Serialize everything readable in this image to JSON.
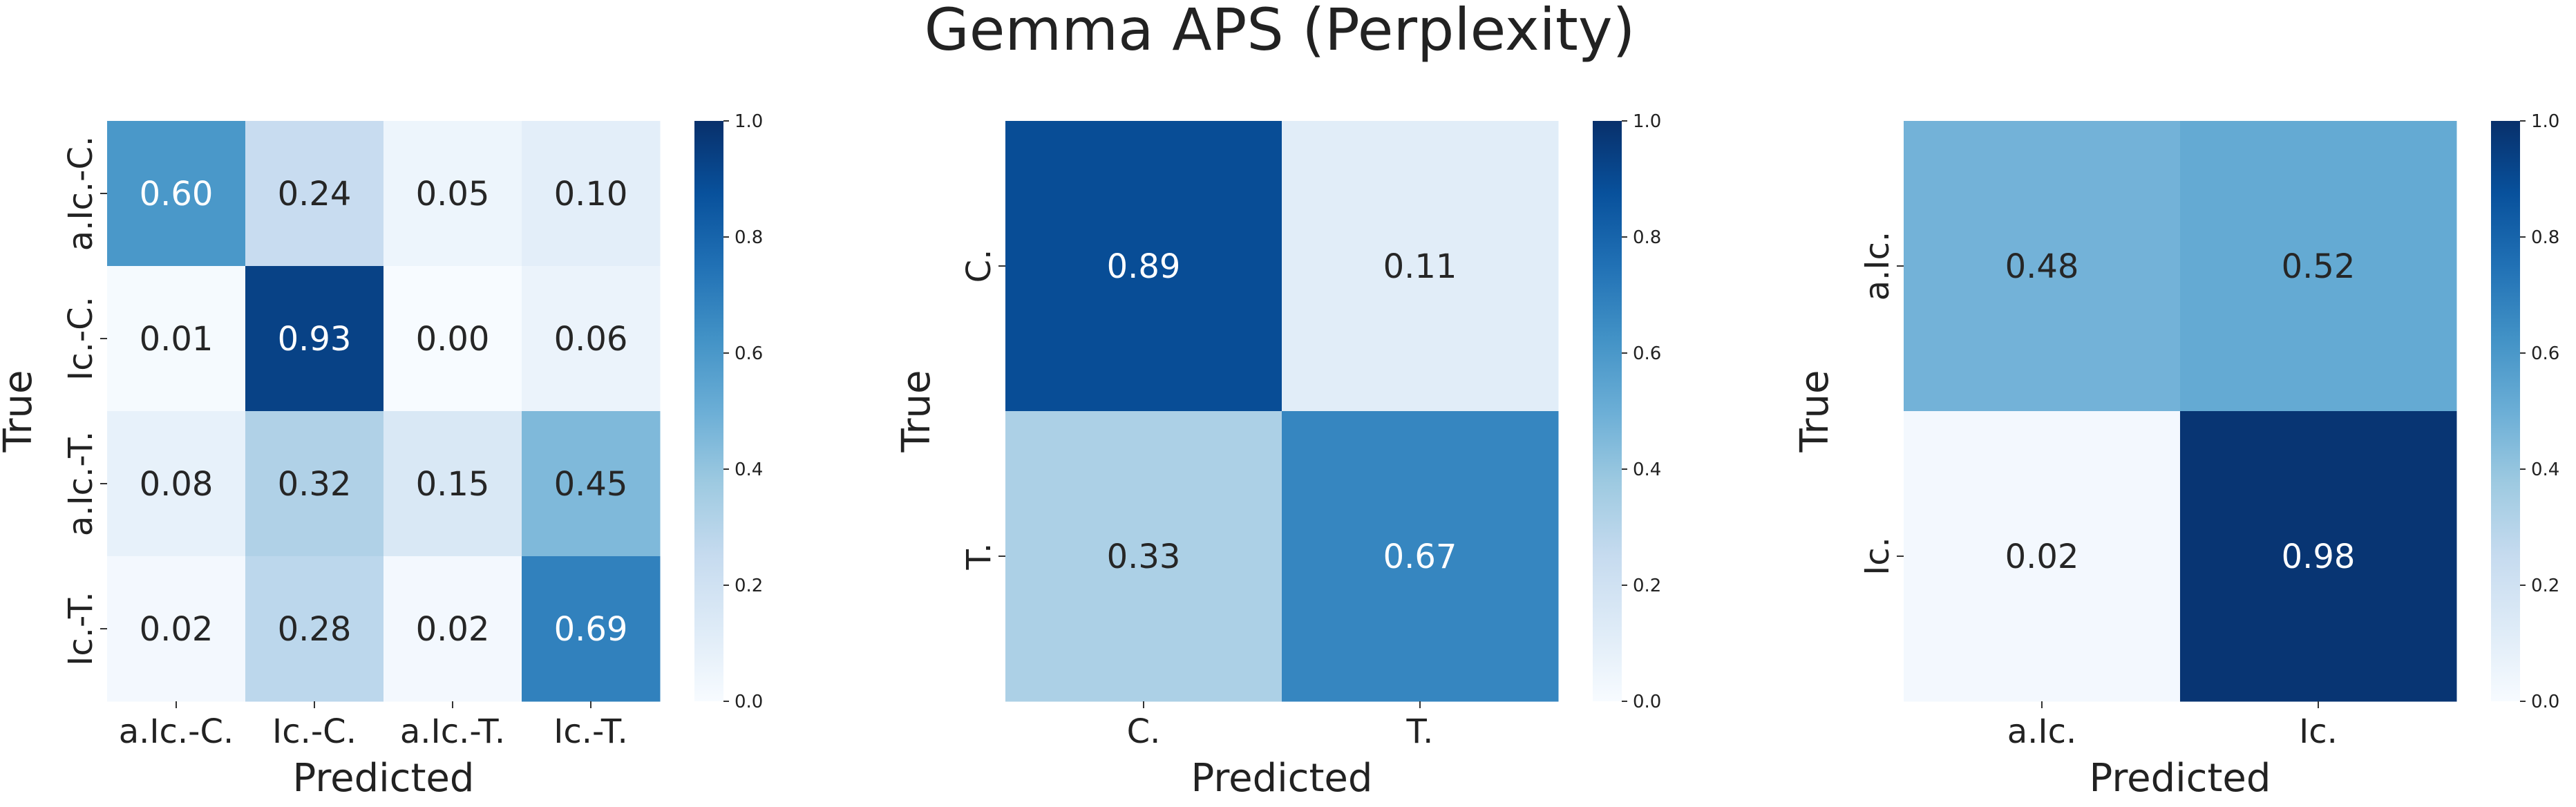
{
  "figure": {
    "title": "Gemma APS (Perplexity)"
  },
  "colorbar_ticks": [
    "0.0",
    "0.2",
    "0.4",
    "0.6",
    "0.8",
    "1.0"
  ],
  "chart_data": [
    {
      "type": "heatmap",
      "xlabel": "Predicted",
      "ylabel": "True",
      "x_categories": [
        "a.Ic.-C.",
        "Ic.-C.",
        "a.Ic.-T.",
        "Ic.-T."
      ],
      "y_categories": [
        "a.Ic.-C.",
        "Ic.-C.",
        "a.Ic.-T.",
        "Ic.-T."
      ],
      "values": [
        [
          0.6,
          0.24,
          0.05,
          0.1
        ],
        [
          0.01,
          0.93,
          0.0,
          0.06
        ],
        [
          0.08,
          0.32,
          0.15,
          0.45
        ],
        [
          0.02,
          0.28,
          0.02,
          0.69
        ]
      ],
      "value_labels": [
        [
          "0.60",
          "0.24",
          "0.05",
          "0.10"
        ],
        [
          "0.01",
          "0.93",
          "0.00",
          "0.06"
        ],
        [
          "0.08",
          "0.32",
          "0.15",
          "0.45"
        ],
        [
          "0.02",
          "0.28",
          "0.02",
          "0.69"
        ]
      ],
      "colorscale": "Blues",
      "vmin": 0.0,
      "vmax": 1.0
    },
    {
      "type": "heatmap",
      "xlabel": "Predicted",
      "ylabel": "True",
      "x_categories": [
        "C.",
        "T."
      ],
      "y_categories": [
        "C.",
        "T."
      ],
      "values": [
        [
          0.89,
          0.11
        ],
        [
          0.33,
          0.67
        ]
      ],
      "value_labels": [
        [
          "0.89",
          "0.11"
        ],
        [
          "0.33",
          "0.67"
        ]
      ],
      "colorscale": "Blues",
      "vmin": 0.0,
      "vmax": 1.0
    },
    {
      "type": "heatmap",
      "xlabel": "Predicted",
      "ylabel": "True",
      "x_categories": [
        "a.Ic.",
        "Ic."
      ],
      "y_categories": [
        "a.Ic.",
        "Ic."
      ],
      "values": [
        [
          0.48,
          0.52
        ],
        [
          0.02,
          0.98
        ]
      ],
      "value_labels": [
        [
          "0.48",
          "0.52"
        ],
        [
          "0.02",
          "0.98"
        ]
      ],
      "colorscale": "Blues",
      "vmin": 0.0,
      "vmax": 1.0
    }
  ]
}
